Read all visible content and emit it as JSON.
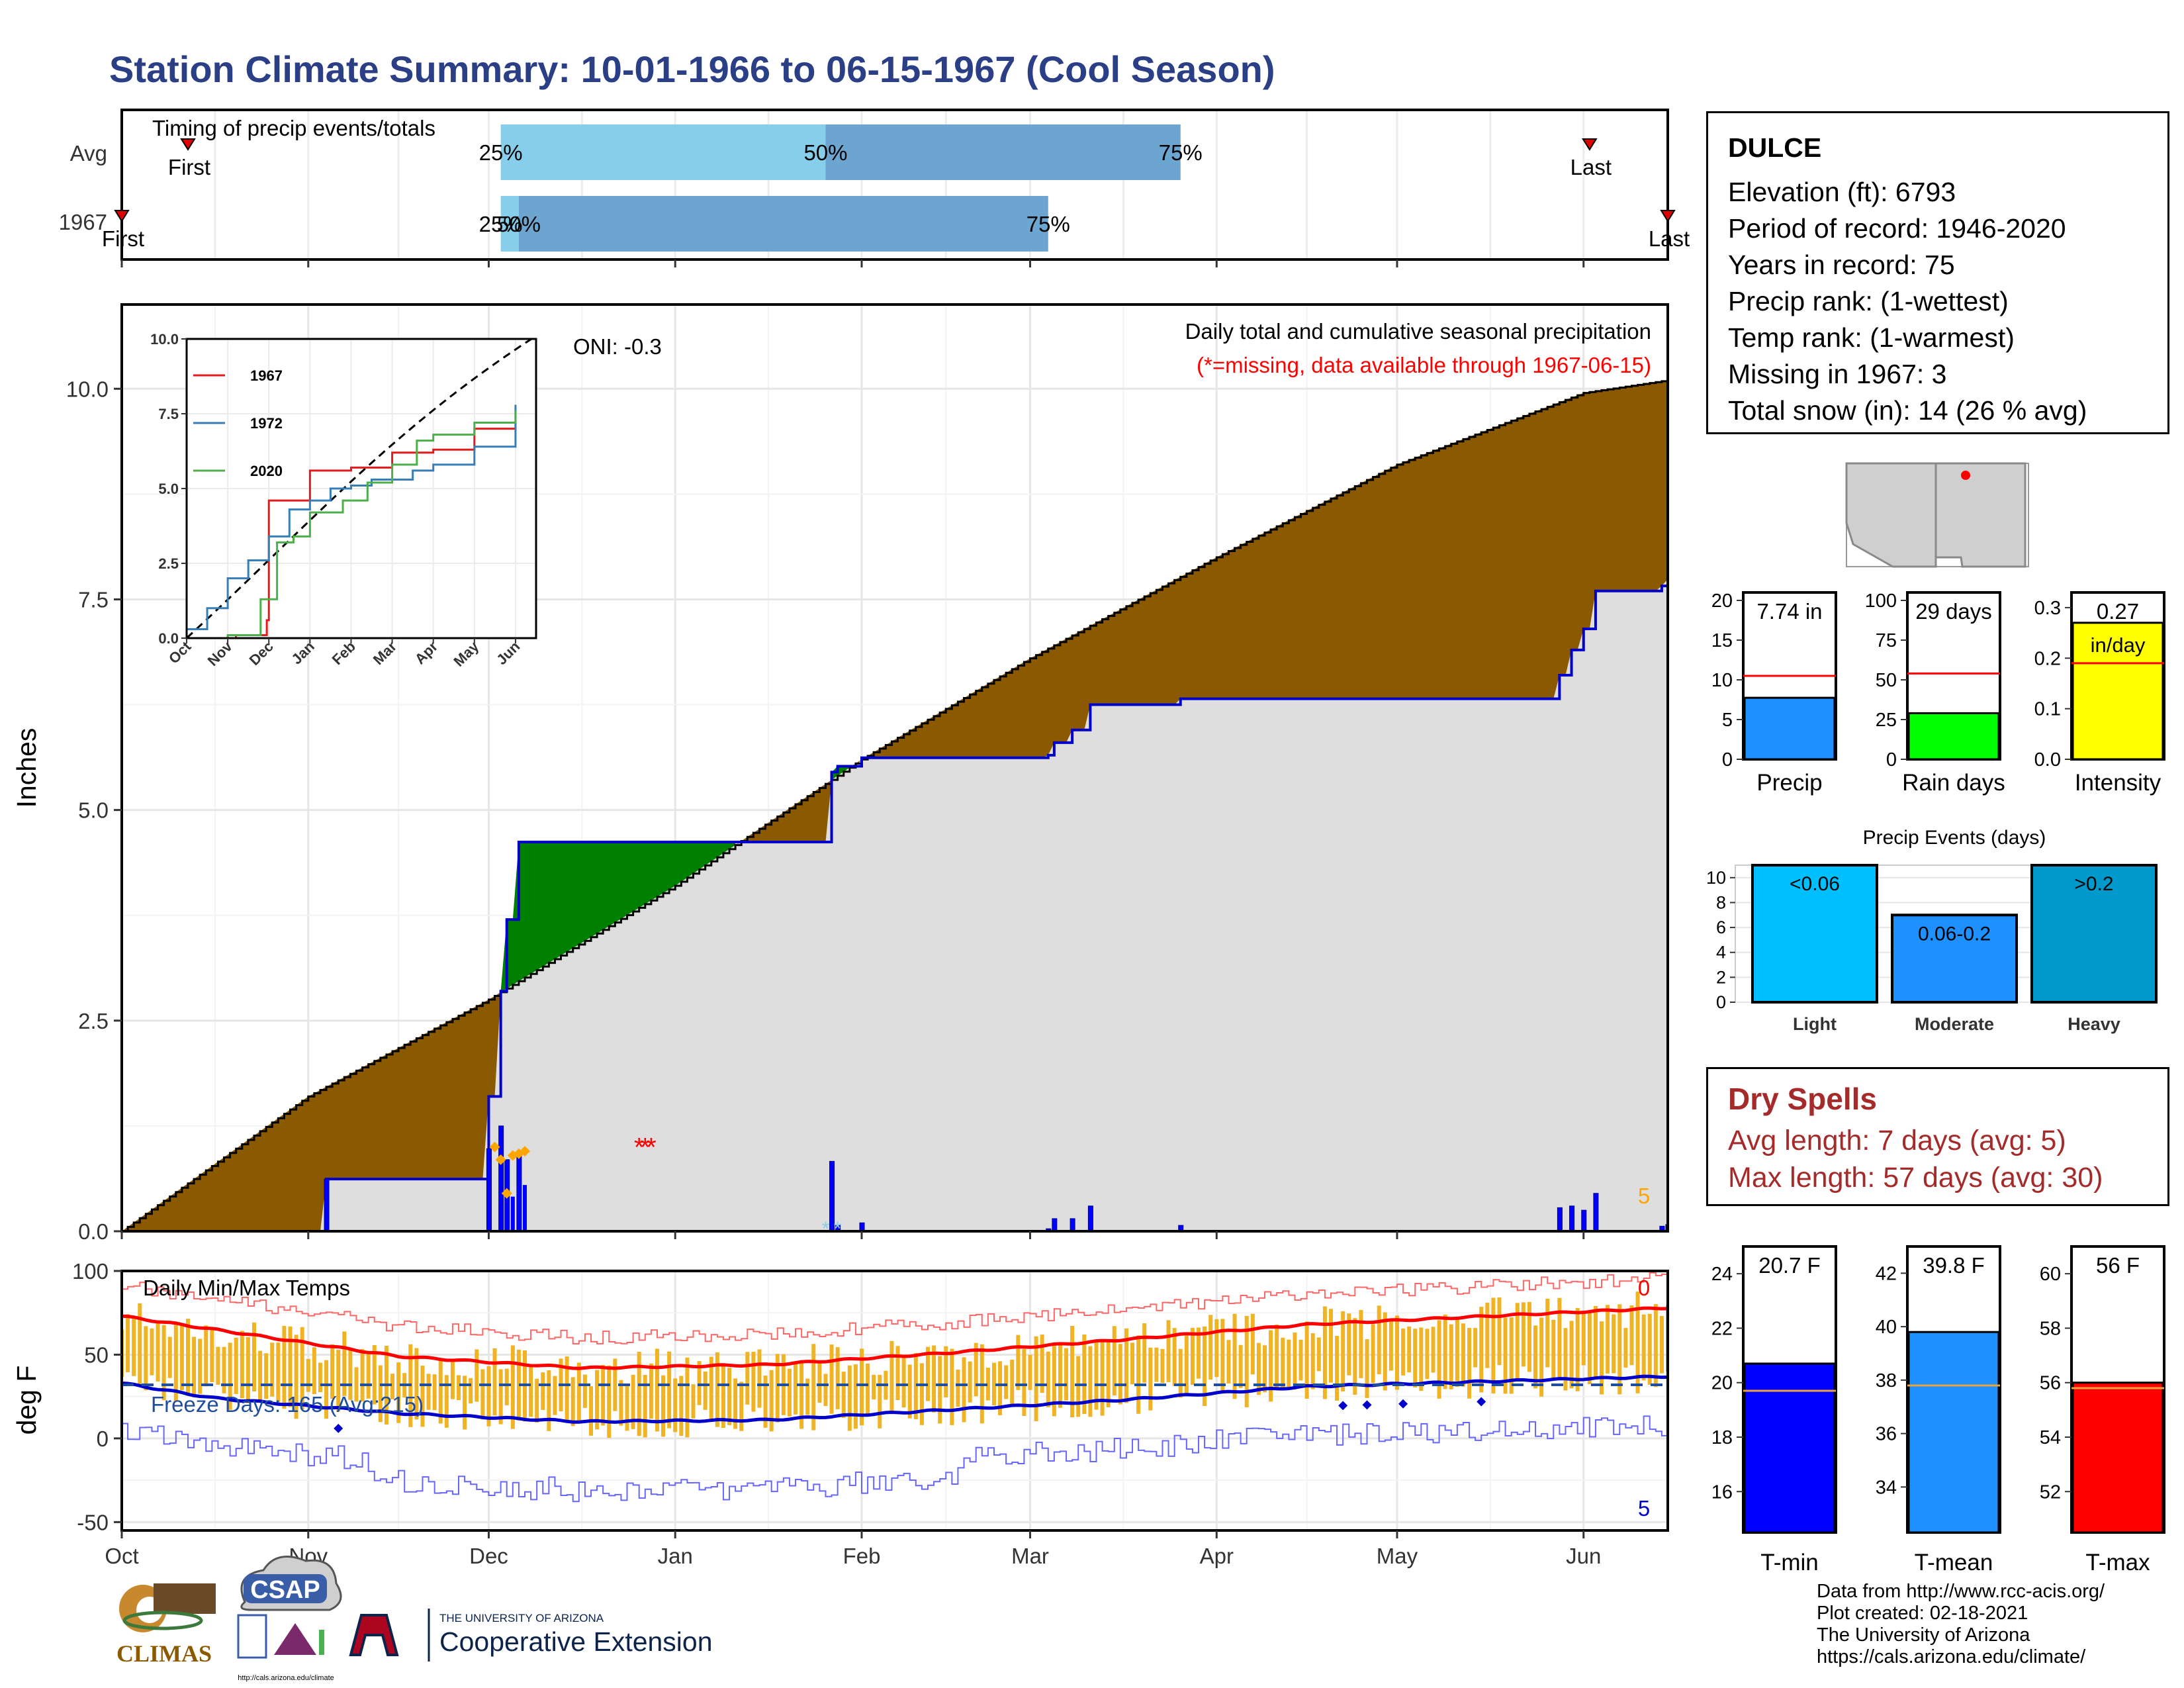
{
  "title": "Station Climate Summary: 10-01-1966 to 06-15-1967 (Cool Season)",
  "timing_panel": {
    "label": "Timing of precip events/totals",
    "rows": [
      "Avg",
      "1967"
    ],
    "avg": {
      "first_label": "First",
      "last_label": "Last",
      "q25": "25%",
      "q50": "50%",
      "q75": "75%"
    },
    "year": {
      "first_label": "First",
      "last_label": "Last",
      "q25": "25%",
      "q50": "50%",
      "q75": "75%"
    }
  },
  "station": {
    "name": "DULCE",
    "lines": [
      "Elevation (ft): 6793",
      "Period of record: 1946-2020",
      "Years in record: 75",
      "Precip rank:  (1-wettest)",
      "Temp rank:  (1-warmest)",
      "Missing in 1967: 3",
      "Total snow (in): 14 (26 % avg)"
    ]
  },
  "precip_panel": {
    "ylabel": "Inches",
    "title": "Daily total and cumulative seasonal precipitation",
    "missing_note": "(*=missing, data available through 1967-06-15)",
    "oni": "ONI: -0.3",
    "corner_value": "5",
    "y_ticks": [
      "0.0",
      "2.5",
      "5.0",
      "7.5",
      "10.0"
    ],
    "month_labels": [
      "Oct",
      "Nov",
      "Dec",
      "Jan",
      "Feb",
      "Mar",
      "Apr",
      "May",
      "Jun"
    ]
  },
  "inset": {
    "y_ticks": [
      "0.0",
      "2.5",
      "5.0",
      "7.5",
      "10.0"
    ],
    "x_ticks": [
      "Oct",
      "Nov",
      "Dec",
      "Jan",
      "Feb",
      "Mar",
      "Apr",
      "May",
      "Jun"
    ],
    "legend": [
      "1967",
      "1972",
      "2020"
    ]
  },
  "temp_panel": {
    "ylabel": "deg F",
    "title": "Daily Min/Max Temps",
    "freeze_label": "Freeze Days: 165 (Avg:215)",
    "top_count": "0",
    "bottom_count": "5",
    "y_ticks": [
      "-50",
      "0",
      "50",
      "100"
    ]
  },
  "stat_boxes": [
    {
      "label": "Precip",
      "value_text": "7.74 in",
      "ticks": [
        "0",
        "5",
        "10",
        "15",
        "20"
      ]
    },
    {
      "label": "Rain days",
      "value_text": "29 days",
      "ticks": [
        "0",
        "25",
        "50",
        "75",
        "100"
      ]
    },
    {
      "label": "Intensity",
      "value_text": "0.27",
      "sub_text": "in/day",
      "ticks": [
        "0.0",
        "0.1",
        "0.2",
        "0.3"
      ]
    }
  ],
  "events_panel": {
    "title": "Precip Events (days)",
    "ticks": [
      "0",
      "2",
      "4",
      "6",
      "8",
      "10"
    ],
    "bars": [
      {
        "category": "Light",
        "label": "<0.06"
      },
      {
        "category": "Moderate",
        "label": "0.06-0.2"
      },
      {
        "category": "Heavy",
        "label": ">0.2"
      }
    ]
  },
  "dry_spells": {
    "title": "Dry Spells",
    "avg_length": "Avg length: 7 days (avg: 5)",
    "max_length": "Max length: 57 days (avg: 30)"
  },
  "temp_boxes": [
    {
      "label": "T-min",
      "value_text": "20.7 F",
      "ticks": [
        "16",
        "18",
        "20",
        "22",
        "24"
      ]
    },
    {
      "label": "T-mean",
      "value_text": "39.8 F",
      "ticks": [
        "34",
        "36",
        "38",
        "40",
        "42"
      ]
    },
    {
      "label": "T-max",
      "value_text": "56 F",
      "ticks": [
        "52",
        "54",
        "56",
        "58",
        "60"
      ]
    }
  ],
  "footer": [
    "Data from http://www.rcc-acis.org/",
    "Plot created: 02-18-2021",
    "The University of Arizona",
    "https://cals.arizona.edu/climate/"
  ],
  "logos": {
    "climas": "CLIMAS",
    "csap": "CSAP",
    "csap_url": "http://cals.arizona.edu/climate",
    "ua_small": "THE UNIVERSITY OF ARIZONA",
    "ua_big": "Cooperative Extension"
  },
  "colors": {
    "title": "#2b3f86",
    "cum_above": "#8b5a00",
    "cum_below": "#008000",
    "cum_fill": "#dedede",
    "daily_bar": "#0000ff",
    "snow": "#ffa500",
    "tmax_avg": "#ff0000",
    "tmin_avg": "#0000cc",
    "temp_bar": "#f0b323",
    "precip_box": "#1e90ff",
    "raindays_box": "#00ff00",
    "intensity_box": "#ffff00",
    "light": "#00bfff",
    "moderate": "#1e90ff",
    "heavy": "#0099cc",
    "tmin_box": "#0000ff",
    "tmean_box": "#1e90ff",
    "tmax_box": "#ff0000",
    "dry_spells": "#a52a2a"
  },
  "chart_data": [
    {
      "type": "bar",
      "name": "timing",
      "categories": [
        "Avg",
        "1967"
      ],
      "series": [
        {
          "name": "Avg",
          "first": "1966-10-12",
          "q25": "1966-12-03",
          "q50": "1967-01-26",
          "q75": "1967-03-26",
          "last": "1967-06-02"
        },
        {
          "name": "1967",
          "first": "1966-10-01",
          "q25": "1966-12-03",
          "q50": "1966-12-06",
          "q75": "1967-03-04",
          "last": "1967-06-15"
        }
      ]
    },
    {
      "type": "area",
      "name": "cumulative_precip",
      "x_range": [
        "1966-10-01",
        "1967-06-15"
      ],
      "ylim": [
        0,
        11
      ],
      "series": [
        {
          "name": "avg_cumulative",
          "x": [
            "1966-10-01",
            "1966-11-01",
            "1966-12-01",
            "1967-01-01",
            "1967-02-01",
            "1967-03-01",
            "1967-04-01",
            "1967-05-01",
            "1967-06-01",
            "1967-06-15"
          ],
          "values": [
            0.0,
            1.6,
            2.75,
            4.1,
            5.6,
            6.8,
            8.0,
            9.1,
            9.95,
            10.1
          ]
        },
        {
          "name": "observed_cumulative",
          "x": [
            "1966-10-01",
            "1966-11-03",
            "1966-11-04",
            "1966-11-30",
            "1966-12-01",
            "1966-12-03",
            "1966-12-04",
            "1966-12-06",
            "1967-01-26",
            "1967-01-27",
            "1967-01-28",
            "1967-02-01",
            "1967-03-04",
            "1967-03-05",
            "1967-03-08",
            "1967-03-11",
            "1967-03-26",
            "1967-05-26",
            "1967-05-28",
            "1967-05-30",
            "1967-06-01",
            "1967-06-03",
            "1967-06-14",
            "1967-06-15"
          ],
          "values": [
            0.0,
            0.0,
            0.62,
            0.62,
            1.6,
            2.85,
            3.7,
            4.62,
            4.62,
            5.45,
            5.52,
            5.62,
            5.65,
            5.8,
            5.95,
            6.25,
            6.32,
            6.32,
            6.6,
            6.9,
            7.15,
            7.6,
            7.66,
            7.74
          ]
        }
      ]
    },
    {
      "type": "line",
      "name": "inset_cumulative",
      "x_ticks": [
        "Oct",
        "Nov",
        "Dec",
        "Jan",
        "Feb",
        "Mar",
        "Apr",
        "May",
        "Jun"
      ],
      "ylim": [
        0,
        10
      ],
      "series": [
        {
          "name": "1967",
          "x": [
            0,
            1.2,
            1.95,
            2.0,
            2.2,
            3.0,
            4.0,
            5.0,
            6.0,
            7.0,
            8.0
          ],
          "values": [
            0,
            0.1,
            0.6,
            4.6,
            4.6,
            5.6,
            5.7,
            6.2,
            6.3,
            7.0,
            7.6
          ]
        },
        {
          "name": "1972",
          "x": [
            0,
            0.5,
            1.0,
            1.5,
            2.0,
            2.5,
            3.0,
            3.5,
            4.0,
            4.5,
            5.0,
            5.5,
            6.0,
            7.0,
            8.0
          ],
          "values": [
            0.3,
            1.0,
            2.0,
            2.6,
            3.4,
            4.3,
            4.6,
            5.0,
            5.1,
            5.3,
            5.3,
            5.6,
            5.8,
            6.4,
            7.8
          ]
        },
        {
          "name": "2020",
          "x": [
            0,
            1.0,
            1.8,
            2.2,
            2.6,
            3.0,
            3.8,
            4.4,
            5.0,
            5.6,
            6.0,
            7.0,
            8.0
          ],
          "values": [
            0,
            0.1,
            1.3,
            3.2,
            3.4,
            4.2,
            4.6,
            5.2,
            5.8,
            6.6,
            6.8,
            7.2,
            7.6
          ]
        }
      ]
    },
    {
      "type": "line",
      "name": "daily_temps",
      "ylim": [
        -55,
        100
      ],
      "series": [
        {
          "name": "avg_tmax",
          "x": [
            "Oct",
            "Nov",
            "Dec",
            "Jan",
            "Feb",
            "Mar",
            "Apr",
            "May",
            "Jun"
          ],
          "values": [
            73,
            65,
            49,
            42,
            44,
            51,
            59,
            68,
            78
          ]
        },
        {
          "name": "avg_tmin",
          "x": [
            "Oct",
            "Nov",
            "Dec",
            "Jan",
            "Feb",
            "Mar",
            "Apr",
            "May",
            "Jun"
          ],
          "values": [
            33,
            24,
            15,
            10,
            11,
            17,
            23,
            31,
            37
          ]
        },
        {
          "name": "freeze_line",
          "values": [
            32
          ]
        }
      ]
    },
    {
      "type": "bar",
      "name": "precip_total",
      "categories": [
        "Precip"
      ],
      "values": [
        7.74
      ],
      "avg": 10.5,
      "ylim": [
        0,
        21
      ]
    },
    {
      "type": "bar",
      "name": "rain_days",
      "categories": [
        "Rain days"
      ],
      "values": [
        29
      ],
      "avg": 54,
      "ylim": [
        0,
        105
      ]
    },
    {
      "type": "bar",
      "name": "intensity",
      "categories": [
        "Intensity"
      ],
      "values": [
        0.27
      ],
      "avg": 0.19,
      "ylim": [
        0,
        0.33
      ]
    },
    {
      "type": "bar",
      "name": "precip_events",
      "categories": [
        "Light",
        "Moderate",
        "Heavy"
      ],
      "values": [
        11,
        7,
        11
      ],
      "ylim": [
        0,
        11
      ]
    },
    {
      "type": "bar",
      "name": "tmin_box",
      "categories": [
        "T-min"
      ],
      "values": [
        20.7
      ],
      "avg": 19.7,
      "ylim": [
        14.5,
        25
      ]
    },
    {
      "type": "bar",
      "name": "tmean_box",
      "categories": [
        "T-mean"
      ],
      "values": [
        39.8
      ],
      "avg": 37.8,
      "ylim": [
        32.3,
        43
      ]
    },
    {
      "type": "bar",
      "name": "tmax_box",
      "categories": [
        "T-max"
      ],
      "values": [
        56
      ],
      "avg": 55.8,
      "ylim": [
        50.5,
        61
      ]
    }
  ]
}
